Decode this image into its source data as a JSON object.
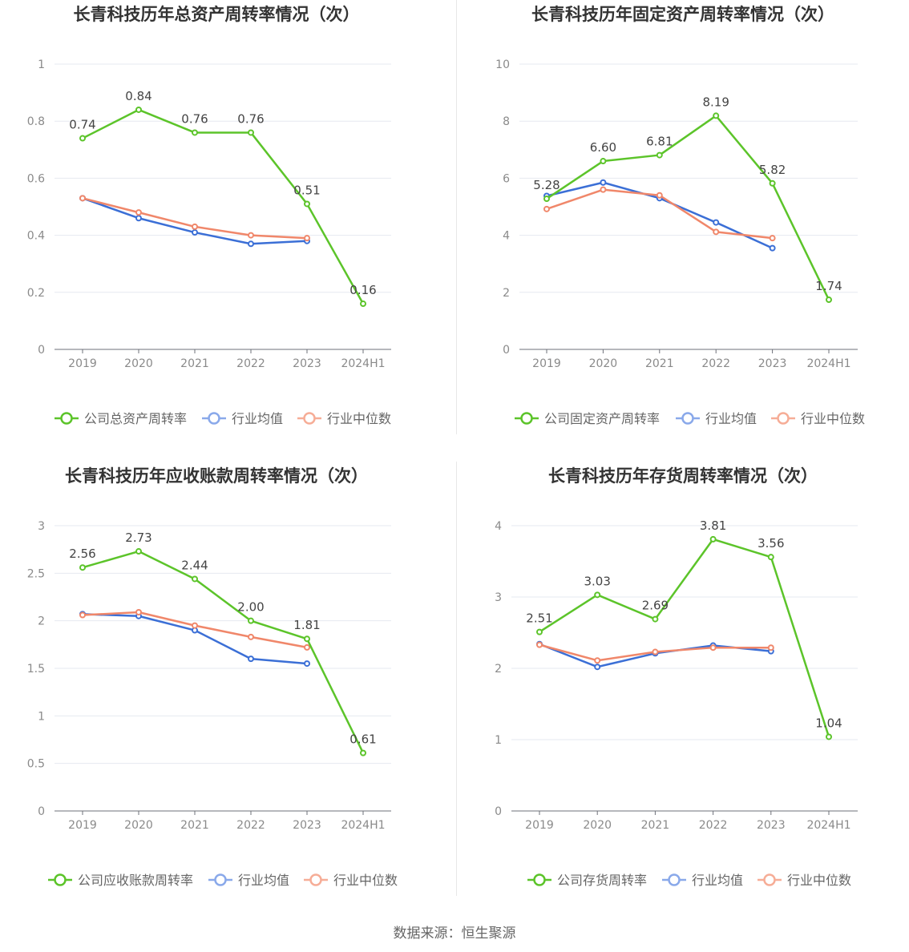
{
  "colors": {
    "company": "#5cc42a",
    "avg": "#3b6fd6",
    "median": "#f0876a",
    "grid": "#e6e9f0",
    "axis": "#6e7079",
    "tick": "#8a8a8a"
  },
  "source": "数据来源：恒生聚源",
  "chart_data": [
    {
      "type": "line",
      "title": "长青科技历年总资产周转率情况（次）",
      "categories": [
        "2019",
        "2020",
        "2021",
        "2022",
        "2023",
        "2024H1"
      ],
      "ylim": [
        0,
        1
      ],
      "yticks": [
        "0",
        "0.2",
        "0.4",
        "0.6",
        "0.8",
        "1"
      ],
      "ytick_values": [
        0,
        0.2,
        0.4,
        0.6,
        0.8,
        1
      ],
      "series": [
        {
          "name": "公司总资产周转率",
          "values": [
            0.74,
            0.84,
            0.76,
            0.76,
            0.51,
            0.16
          ],
          "labels": [
            "0.74",
            "0.84",
            "0.76",
            "0.76",
            "0.51",
            "0.16"
          ]
        },
        {
          "name": "行业均值",
          "values": [
            0.53,
            0.46,
            0.41,
            0.37,
            0.38,
            null
          ]
        },
        {
          "name": "行业中位数",
          "values": [
            0.53,
            0.48,
            0.43,
            0.4,
            0.39,
            null
          ]
        }
      ]
    },
    {
      "type": "line",
      "title": "长青科技历年固定资产周转率情况（次）",
      "categories": [
        "2019",
        "2020",
        "2021",
        "2022",
        "2023",
        "2024H1"
      ],
      "ylim": [
        0,
        10
      ],
      "yticks": [
        "0",
        "2",
        "4",
        "6",
        "8",
        "10"
      ],
      "ytick_values": [
        0,
        2,
        4,
        6,
        8,
        10
      ],
      "series": [
        {
          "name": "公司固定资产周转率",
          "values": [
            5.28,
            6.6,
            6.81,
            8.19,
            5.82,
            1.74
          ],
          "labels": [
            "5.28",
            "6.60",
            "6.81",
            "8.19",
            "5.82",
            "1.74"
          ]
        },
        {
          "name": "行业均值",
          "values": [
            5.38,
            5.85,
            5.3,
            4.45,
            3.55,
            null
          ]
        },
        {
          "name": "行业中位数",
          "values": [
            4.92,
            5.6,
            5.4,
            4.12,
            3.9,
            null
          ]
        }
      ]
    },
    {
      "type": "line",
      "title": "长青科技历年应收账款周转率情况（次）",
      "categories": [
        "2019",
        "2020",
        "2021",
        "2022",
        "2023",
        "2024H1"
      ],
      "ylim": [
        0,
        3
      ],
      "yticks": [
        "0",
        "0.5",
        "1",
        "1.5",
        "2",
        "2.5",
        "3"
      ],
      "ytick_values": [
        0,
        0.5,
        1,
        1.5,
        2,
        2.5,
        3
      ],
      "series": [
        {
          "name": "公司应收账款周转率",
          "values": [
            2.56,
            2.73,
            2.44,
            2.0,
            1.81,
            0.61
          ],
          "labels": [
            "2.56",
            "2.73",
            "2.44",
            "2.00",
            "1.81",
            "0.61"
          ]
        },
        {
          "name": "行业均值",
          "values": [
            2.07,
            2.05,
            1.9,
            1.6,
            1.55,
            null
          ]
        },
        {
          "name": "行业中位数",
          "values": [
            2.06,
            2.09,
            1.95,
            1.83,
            1.72,
            null
          ]
        }
      ]
    },
    {
      "type": "line",
      "title": "长青科技历年存货周转率情况（次）",
      "categories": [
        "2019",
        "2020",
        "2021",
        "2022",
        "2023",
        "2024H1"
      ],
      "ylim": [
        0,
        4
      ],
      "yticks": [
        "0",
        "1",
        "2",
        "3",
        "4"
      ],
      "ytick_values": [
        0,
        1,
        2,
        3,
        4
      ],
      "series": [
        {
          "name": "公司存货周转率",
          "values": [
            2.51,
            3.03,
            2.69,
            3.81,
            3.56,
            1.04
          ],
          "labels": [
            "2.51",
            "3.03",
            "2.69",
            "3.81",
            "3.56",
            "1.04"
          ]
        },
        {
          "name": "行业均值",
          "values": [
            2.34,
            2.02,
            2.21,
            2.32,
            2.24,
            null
          ]
        },
        {
          "name": "行业中位数",
          "values": [
            2.33,
            2.11,
            2.23,
            2.29,
            2.29,
            null
          ]
        }
      ]
    }
  ]
}
